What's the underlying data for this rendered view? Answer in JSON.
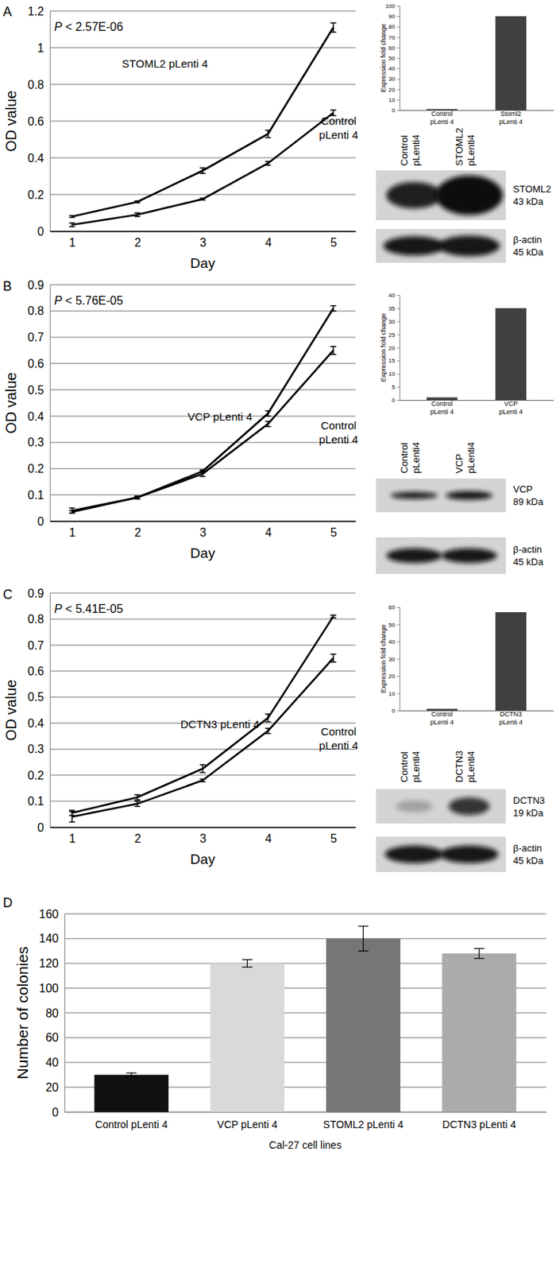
{
  "chart_data": [
    {
      "type": "line",
      "annotations": [
        "P < 2.57E-06"
      ],
      "xlabel": "Day",
      "ylabel": "OD value",
      "categories": [
        "1",
        "2",
        "3",
        "4",
        "5"
      ],
      "series": [
        {
          "name": "STOML2 pLenti 4",
          "color": "#000000",
          "values": [
            0.08,
            0.16,
            0.33,
            0.53,
            1.11
          ],
          "errors": [
            0.005,
            0.005,
            0.015,
            0.02,
            0.025
          ]
        },
        {
          "name": "Control pLenti 4",
          "color": "#000000",
          "values": [
            0.035,
            0.09,
            0.175,
            0.37,
            0.645
          ],
          "errors": [
            0.01,
            0.01,
            0.005,
            0.01,
            0.015
          ]
        }
      ],
      "ylim": [
        0,
        1.2
      ],
      "yticks": [
        0,
        0.2,
        0.4,
        0.6,
        0.8,
        1,
        1.2
      ],
      "grid": true
    },
    {
      "type": "bar",
      "ylabel": "Expression fold change",
      "categories": [
        "Control pLenti 4",
        "Stoml2 pLenti 4"
      ],
      "values": [
        1,
        90
      ],
      "color": "#404040",
      "ylim": [
        0,
        100
      ],
      "yticks": [
        0,
        10,
        20,
        30,
        40,
        50,
        60,
        70,
        80,
        90,
        100
      ],
      "grid": false
    },
    {
      "type": "line",
      "annotations": [
        "P < 5.76E-05"
      ],
      "xlabel": "Day",
      "ylabel": "OD value",
      "categories": [
        "1",
        "2",
        "3",
        "4",
        "5"
      ],
      "series": [
        {
          "name": "VCP pLenti 4",
          "color": "#000000",
          "values": [
            0.04,
            0.09,
            0.19,
            0.41,
            0.81
          ],
          "errors": [
            0.01,
            0.005,
            0.005,
            0.01,
            0.01
          ]
        },
        {
          "name": "Control pLenti 4",
          "color": "#000000",
          "values": [
            0.035,
            0.09,
            0.18,
            0.37,
            0.65
          ],
          "errors": [
            0.005,
            0.005,
            0.01,
            0.01,
            0.015
          ]
        }
      ],
      "ylim": [
        0,
        0.9
      ],
      "yticks": [
        0,
        0.1,
        0.2,
        0.3,
        0.4,
        0.5,
        0.6,
        0.7,
        0.8,
        0.9
      ],
      "grid": true
    },
    {
      "type": "bar",
      "ylabel": "Expression fold change",
      "categories": [
        "Control pLenti 4",
        "VCP pLenti 4"
      ],
      "values": [
        1,
        35
      ],
      "color": "#404040",
      "ylim": [
        0,
        40
      ],
      "yticks": [
        0,
        5,
        10,
        15,
        20,
        25,
        30,
        35,
        40
      ],
      "grid": false
    },
    {
      "type": "line",
      "annotations": [
        "P < 5.41E-05"
      ],
      "xlabel": "Day",
      "ylabel": "OD value",
      "categories": [
        "1",
        "2",
        "3",
        "4",
        "5"
      ],
      "series": [
        {
          "name": "DCTN3 pLenti 4",
          "color": "#000000",
          "values": [
            0.055,
            0.115,
            0.225,
            0.42,
            0.81
          ],
          "errors": [
            0.01,
            0.01,
            0.015,
            0.015,
            0.005
          ]
        },
        {
          "name": "Control pLenti 4",
          "color": "#000000",
          "values": [
            0.04,
            0.09,
            0.18,
            0.37,
            0.65
          ],
          "errors": [
            0.02,
            0.01,
            0.005,
            0.01,
            0.015
          ]
        }
      ],
      "ylim": [
        0,
        0.9
      ],
      "yticks": [
        0,
        0.1,
        0.2,
        0.3,
        0.4,
        0.5,
        0.6,
        0.7,
        0.8,
        0.9
      ],
      "grid": true
    },
    {
      "type": "bar",
      "ylabel": "Expression fold change",
      "categories": [
        "Control pLenti 4",
        "DCTN3 pLenti 4"
      ],
      "values": [
        1,
        57
      ],
      "color": "#404040",
      "ylim": [
        0,
        60
      ],
      "yticks": [
        0,
        10,
        20,
        30,
        40,
        50,
        60
      ],
      "grid": false
    },
    {
      "type": "bar",
      "ylabel": "Number of colonies",
      "xlabel": "Cal-27 cell lines",
      "categories": [
        "Control pLenti 4",
        "VCP pLenti 4",
        "STOML2 pLenti 4",
        "DCTN3 pLenti 4"
      ],
      "values": [
        30,
        120,
        140,
        128
      ],
      "errors": [
        1.5,
        3,
        10,
        4
      ],
      "colors": [
        "#111111",
        "#d9d9d9",
        "#767676",
        "#ababab"
      ],
      "ylim": [
        0,
        160
      ],
      "yticks": [
        0,
        20,
        40,
        60,
        80,
        100,
        120,
        140,
        160
      ],
      "grid": true
    }
  ],
  "panel_labels": [
    "A",
    "B",
    "C",
    "D"
  ],
  "blots": [
    {
      "lanes": [
        "Control pLenti4",
        "STOML2 pLenti4"
      ],
      "bands": [
        {
          "protein": "STOML2",
          "size": "43 kDa"
        },
        {
          "protein": "β-actin",
          "size": "45 kDa"
        }
      ]
    },
    {
      "lanes": [
        "Control pLenti4",
        "VCP pLenti4"
      ],
      "bands": [
        {
          "protein": "VCP",
          "size": "89 kDa"
        },
        {
          "protein": "β-actin",
          "size": "45 kDa"
        }
      ]
    },
    {
      "lanes": [
        "Control pLenti4",
        "DCTN3 pLenti4"
      ],
      "bands": [
        {
          "protein": "DCTN3",
          "size": "19 kDa"
        },
        {
          "protein": "β-actin",
          "size": "45 kDa"
        }
      ]
    }
  ]
}
